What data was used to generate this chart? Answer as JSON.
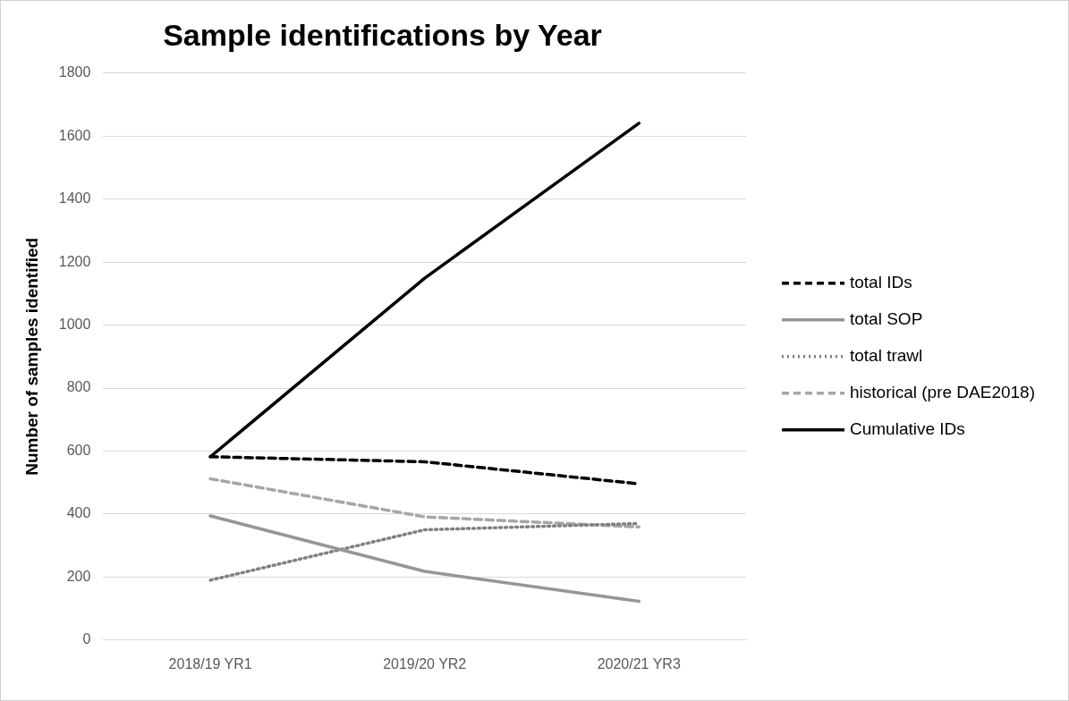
{
  "chart_data": {
    "type": "line",
    "title": "Sample identifications by Year",
    "ylabel": "Number of samples identified",
    "categories": [
      "2018/19 YR1",
      "2019/20 YR2",
      "2020/21 YR3"
    ],
    "series": [
      {
        "name": "total IDs",
        "color": "#000000",
        "line_style": "dashed",
        "values": [
          582,
          566,
          496
        ]
      },
      {
        "name": "total SOP",
        "color": "#969696",
        "line_style": "solid",
        "values": [
          394,
          218,
          123
        ]
      },
      {
        "name": "total trawl",
        "color": "#808080",
        "line_style": "dotted",
        "values": [
          190,
          350,
          370
        ]
      },
      {
        "name": "historical (pre DAE2018)",
        "color": "#a6a6a6",
        "line_style": "dashed",
        "values": [
          512,
          391,
          359
        ]
      },
      {
        "name": "Cumulative IDs",
        "color": "#000000",
        "line_style": "solid",
        "values": [
          582,
          1149,
          1641
        ]
      }
    ],
    "ylim": [
      0,
      1800
    ],
    "yticks": [
      0,
      200,
      400,
      600,
      800,
      1000,
      1200,
      1400,
      1600,
      1800
    ],
    "grid": "y",
    "legend": "right",
    "marker": "none"
  }
}
